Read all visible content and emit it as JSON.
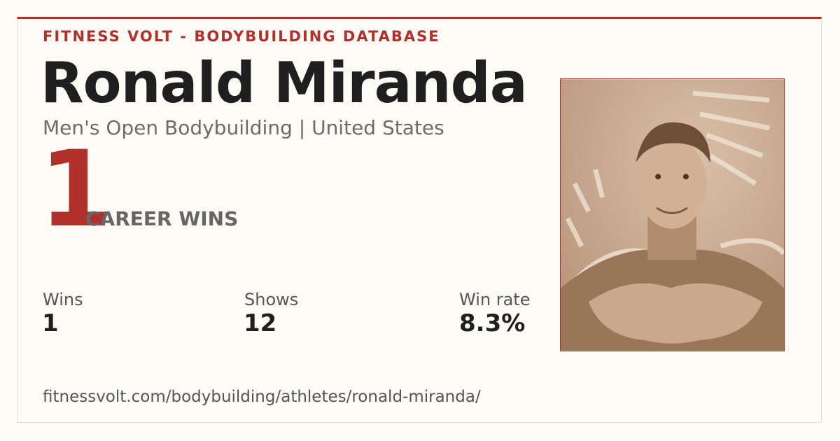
{
  "header": {
    "site": "FITNESS VOLT - BODYBUILDING DATABASE",
    "name": "Ronald Miranda",
    "subtitle": "Men's Open Bodybuilding | United States"
  },
  "hero": {
    "number": "1",
    "label": "CAREER WINS"
  },
  "stats": [
    {
      "label": "Wins",
      "value": "1"
    },
    {
      "label": "Shows",
      "value": "12"
    },
    {
      "label": "Win rate",
      "value": "8.3%"
    }
  ],
  "footer": {
    "url": "fitnessvolt.com/bodybuilding/athletes/ronald-miranda/"
  }
}
